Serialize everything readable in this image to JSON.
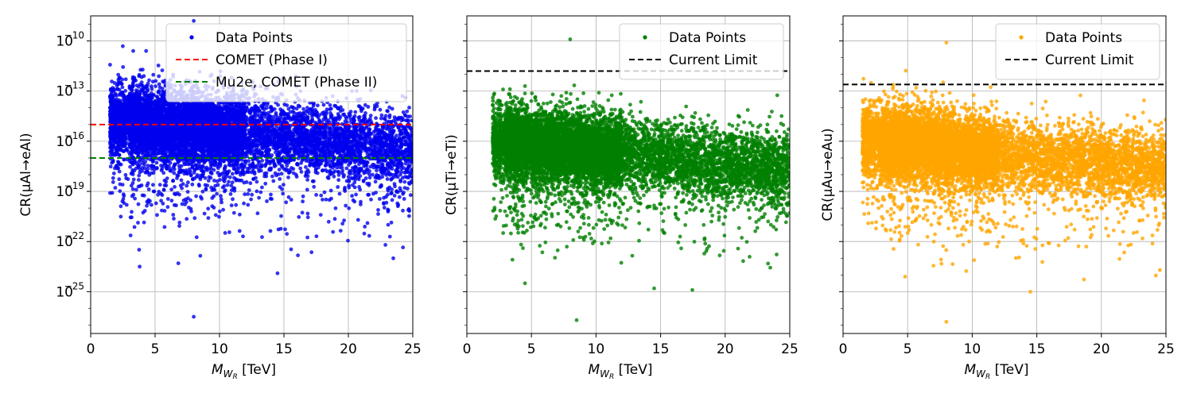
{
  "chart_data": [
    {
      "type": "scatter",
      "xlabel": "M_{W_R} [TeV]",
      "xlabel_main": "M",
      "xlabel_sub": "W",
      "xlabel_subsub": "R",
      "xlabel_unit": " [TeV]",
      "ylabel": "CR(μAl→eAl)",
      "xlim": [
        0,
        25
      ],
      "ylim_log10": [
        -27.5,
        -8.5
      ],
      "yscale": "log",
      "xticks": [
        "0",
        "5",
        "10",
        "15",
        "20",
        "25"
      ],
      "yticks_exp": [
        "−10",
        "−13",
        "−16",
        "−19",
        "−22",
        "−25"
      ],
      "ytick_base": "10",
      "grid": true,
      "legend_position": "top-right",
      "series": [
        {
          "name": "Data Points",
          "color": "#0000ee",
          "n_points": 9000,
          "cluster_log10": -15.8,
          "x_range": [
            1.5,
            25
          ],
          "outliers": [
            [
              8,
              -8.8
            ],
            [
              3.3,
              -10.6
            ],
            [
              4.3,
              -10.6
            ],
            [
              8,
              -26.5
            ],
            [
              3.8,
              -23.5
            ],
            [
              14.5,
              -23.9
            ],
            [
              6.8,
              -23.3
            ]
          ]
        }
      ],
      "reference_lines": [
        {
          "name": "COMET (Phase I)",
          "color": "#ff0000",
          "log10": -15
        },
        {
          "name": "Mu2e, COMET (Phase II)",
          "color": "#008000",
          "log10": -17
        }
      ]
    },
    {
      "type": "scatter",
      "xlabel": "M_{W_R} [TeV]",
      "xlabel_main": "M",
      "xlabel_sub": "W",
      "xlabel_subsub": "R",
      "xlabel_unit": " [TeV]",
      "ylabel": "CR(μTi→eTi)",
      "xlim": [
        0,
        25
      ],
      "ylim_log10": [
        -27.5,
        -8.5
      ],
      "yscale": "log",
      "grid": true,
      "legend_position": "top-right",
      "series": [
        {
          "name": "Data Points",
          "color": "#008000",
          "n_points": 9000,
          "cluster_log10": -17,
          "x_range": [
            2,
            25
          ],
          "outliers": [
            [
              8,
              -9.9
            ],
            [
              8.5,
              -26.7
            ],
            [
              4.5,
              -12.7
            ],
            [
              2.8,
              -12.9
            ],
            [
              4.5,
              -24.5
            ],
            [
              14.5,
              -24.8
            ]
          ]
        }
      ],
      "reference_lines": [
        {
          "name": "Current Limit",
          "color": "#000000",
          "log10": -11.8,
          "dashed": true
        }
      ]
    },
    {
      "type": "scatter",
      "xlabel": "M_{W_R} [TeV]",
      "xlabel_main": "M",
      "xlabel_sub": "W",
      "xlabel_subsub": "R",
      "xlabel_unit": " [TeV]",
      "ylabel": "CR(μAu→eAu)",
      "xlim": [
        0,
        25
      ],
      "ylim_log10": [
        -27.5,
        -8.5
      ],
      "yscale": "log",
      "grid": true,
      "legend_position": "top-right",
      "series": [
        {
          "name": "Data Points",
          "color": "#ffa500",
          "n_points": 9000,
          "cluster_log10": -17,
          "x_range": [
            1.5,
            25
          ],
          "outliers": [
            [
              8,
              -10.1
            ],
            [
              8,
              -26.8
            ],
            [
              4.8,
              -24.1
            ],
            [
              14.5,
              -25
            ]
          ]
        }
      ],
      "reference_lines": [
        {
          "name": "Current Limit",
          "color": "#000000",
          "log10": -12.6,
          "dashed": true
        }
      ]
    }
  ]
}
